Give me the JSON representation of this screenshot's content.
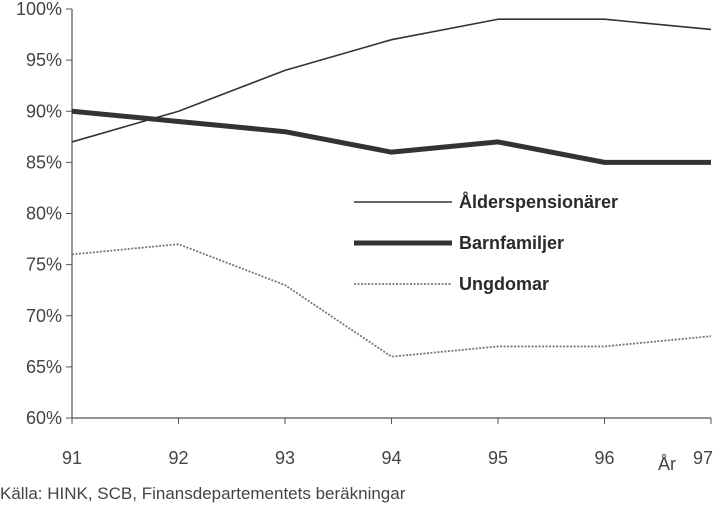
{
  "chart_data": {
    "type": "line",
    "x": [
      "91",
      "92",
      "93",
      "94",
      "95",
      "96",
      "97"
    ],
    "xlabel": "År",
    "ylabel": "",
    "ylim": [
      60,
      100
    ],
    "yticks": [
      "60%",
      "65%",
      "70%",
      "75%",
      "80%",
      "85%",
      "90%",
      "95%",
      "100%"
    ],
    "grid": false,
    "legend_position": "center-right",
    "series": [
      {
        "name": "Ålderspensionärer",
        "values": [
          87,
          90,
          94,
          97,
          99,
          99,
          98
        ],
        "style": "thin",
        "color": "#333333"
      },
      {
        "name": "Barnfamiljer",
        "values": [
          90,
          89,
          88,
          86,
          87,
          85,
          85
        ],
        "style": "thick",
        "color": "#333333"
      },
      {
        "name": "Ungdomar",
        "values": [
          76,
          77,
          73,
          66,
          67,
          67,
          68
        ],
        "style": "dotted",
        "color": "#777777"
      }
    ]
  },
  "source": "Källa: HINK, SCB, Finansdepartementets beräkningar"
}
